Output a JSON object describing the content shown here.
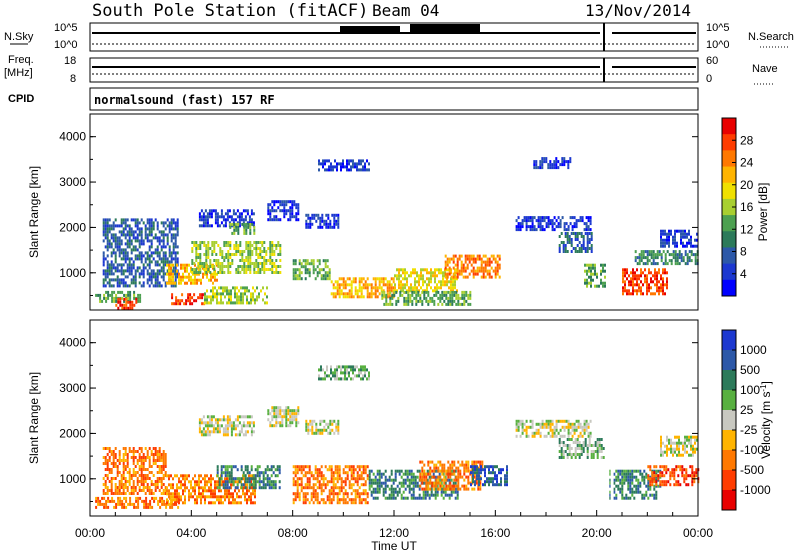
{
  "header": {
    "station": "South Pole Station (fitACF)",
    "beam": "Beam 04",
    "date": "13/Nov/2014"
  },
  "top_panels": {
    "nsky_label": "N.Sky",
    "nsky_ticks": [
      "10^5",
      "10^0"
    ],
    "nsearch_label": "N.Search",
    "nsearch_ticks": [
      "10^5",
      "10^0"
    ],
    "freq_label": "Freq.",
    "freq_unit": "[MHz]",
    "freq_ticks": [
      "18",
      "8"
    ],
    "nave_label": "Nave",
    "nave_ticks": [
      "60",
      "0"
    ],
    "cpid_label": "CPID",
    "cpid_text": "normalsound (fast) 157 RF"
  },
  "chart_data": [
    {
      "type": "heatmap",
      "name": "power",
      "ylabel": "Slant Range [km]",
      "yticks": [
        "4000",
        "3000",
        "2000",
        "1000"
      ],
      "ytick_values": [
        4000,
        3000,
        2000,
        1000
      ],
      "ylim": [
        180,
        4500
      ],
      "xlim_hours": [
        0,
        24
      ],
      "colorbar_label": "Power [dB]",
      "colorbar_ticks": [
        "28",
        "24",
        "20",
        "16",
        "12",
        "8",
        "4"
      ],
      "colorbar_colors": [
        "#e80000",
        "#ff3c00",
        "#ff7800",
        "#ffb400",
        "#f0e000",
        "#a8cf30",
        "#4ca050",
        "#2c7a5a",
        "#2c58a8",
        "#1c38d0",
        "#0000ff"
      ],
      "regions": [
        {
          "t0": 0.2,
          "t1": 2.0,
          "r0": 350,
          "r1": 600,
          "level": 6
        },
        {
          "t0": 1.0,
          "t1": 1.8,
          "r0": 250,
          "r1": 450,
          "level": 1
        },
        {
          "t0": 3.2,
          "t1": 4.6,
          "r0": 300,
          "r1": 550,
          "level": 1
        },
        {
          "t0": 4.5,
          "t1": 7.0,
          "r0": 350,
          "r1": 700,
          "level": 5
        },
        {
          "t0": 0.5,
          "t1": 3.5,
          "r0": 700,
          "r1": 2200,
          "level": 8
        },
        {
          "t0": 3.0,
          "t1": 5.0,
          "r0": 800,
          "r1": 1200,
          "level": 3
        },
        {
          "t0": 4.0,
          "t1": 7.5,
          "r0": 1000,
          "r1": 1700,
          "level": 5
        },
        {
          "t0": 4.3,
          "t1": 6.5,
          "r0": 2050,
          "r1": 2400,
          "level": 9
        },
        {
          "t0": 5.5,
          "t1": 6.5,
          "r0": 1900,
          "r1": 2100,
          "level": 6
        },
        {
          "t0": 7.0,
          "t1": 8.2,
          "r0": 2200,
          "r1": 2600,
          "level": 9
        },
        {
          "t0": 8.5,
          "t1": 9.8,
          "r0": 2000,
          "r1": 2300,
          "level": 9
        },
        {
          "t0": 8.0,
          "t1": 9.5,
          "r0": 900,
          "r1": 1300,
          "level": 6
        },
        {
          "t0": 9.5,
          "t1": 12.0,
          "r0": 500,
          "r1": 900,
          "level": 3
        },
        {
          "t0": 12.0,
          "t1": 14.5,
          "r0": 600,
          "r1": 1100,
          "level": 4
        },
        {
          "t0": 14.0,
          "t1": 16.2,
          "r0": 900,
          "r1": 1400,
          "level": 2
        },
        {
          "t0": 11.5,
          "t1": 15.0,
          "r0": 300,
          "r1": 600,
          "level": 6
        },
        {
          "t0": 16.8,
          "t1": 19.8,
          "r0": 1950,
          "r1": 2250,
          "level": 9
        },
        {
          "t0": 18.5,
          "t1": 19.8,
          "r0": 1500,
          "r1": 1900,
          "level": 8
        },
        {
          "t0": 19.5,
          "t1": 20.3,
          "r0": 700,
          "r1": 1200,
          "level": 6
        },
        {
          "t0": 21.0,
          "t1": 22.8,
          "r0": 550,
          "r1": 1100,
          "level": 1
        },
        {
          "t0": 22.5,
          "t1": 24.0,
          "r0": 1600,
          "r1": 1950,
          "level": 9
        },
        {
          "t0": 21.5,
          "t1": 24.0,
          "r0": 1200,
          "r1": 1500,
          "level": 7
        },
        {
          "t0": 9.0,
          "t1": 11.0,
          "r0": 3300,
          "r1": 3500,
          "level": 9
        },
        {
          "t0": 17.5,
          "t1": 19.0,
          "r0": 3350,
          "r1": 3550,
          "level": 9
        }
      ]
    },
    {
      "type": "heatmap",
      "name": "velocity",
      "ylabel": "Slant Range [km]",
      "yticks": [
        "4000",
        "3000",
        "2000",
        "1000"
      ],
      "ytick_values": [
        4000,
        3000,
        2000,
        1000
      ],
      "ylim": [
        180,
        4500
      ],
      "xlim_hours": [
        0,
        24
      ],
      "xlabel": "Time UT",
      "xticks": [
        "00:00",
        "04:00",
        "08:00",
        "12:00",
        "16:00",
        "20:00",
        "00:00"
      ],
      "xtick_values": [
        0,
        4,
        8,
        12,
        16,
        20,
        24
      ],
      "colorbar_ticks": [
        "1000",
        "500",
        "100",
        "25",
        "-25",
        "-100",
        "-500",
        "-1000"
      ],
      "colorbar_colors": [
        "#1c38d0",
        "#2c58a8",
        "#2c7a5a",
        "#58b040",
        "#c8c8c0",
        "#ffb400",
        "#ff7800",
        "#ff3c00",
        "#e80000"
      ],
      "regions": [
        {
          "t0": 0.2,
          "t1": 3.5,
          "r0": 350,
          "r1": 600,
          "level": 6
        },
        {
          "t0": 0.5,
          "t1": 3.0,
          "r0": 700,
          "r1": 1700,
          "level": 6
        },
        {
          "t0": 3.0,
          "t1": 6.5,
          "r0": 500,
          "r1": 1100,
          "level": 6
        },
        {
          "t0": 5.0,
          "t1": 7.5,
          "r0": 800,
          "r1": 1300,
          "level": 2
        },
        {
          "t0": 4.3,
          "t1": 6.5,
          "r0": 2000,
          "r1": 2400,
          "level": 4
        },
        {
          "t0": 7.0,
          "t1": 8.2,
          "r0": 2150,
          "r1": 2600,
          "level": 4
        },
        {
          "t0": 8.5,
          "t1": 9.8,
          "r0": 2000,
          "r1": 2300,
          "level": 4
        },
        {
          "t0": 8.0,
          "t1": 11.0,
          "r0": 500,
          "r1": 1300,
          "level": 6
        },
        {
          "t0": 11.0,
          "t1": 14.5,
          "r0": 550,
          "r1": 1200,
          "level": 2
        },
        {
          "t0": 13.0,
          "t1": 15.5,
          "r0": 800,
          "r1": 1400,
          "level": 6
        },
        {
          "t0": 15.0,
          "t1": 16.5,
          "r0": 900,
          "r1": 1300,
          "level": 1
        },
        {
          "t0": 16.8,
          "t1": 19.8,
          "r0": 1950,
          "r1": 2300,
          "level": 4
        },
        {
          "t0": 18.5,
          "t1": 20.3,
          "r0": 1500,
          "r1": 1900,
          "level": 3
        },
        {
          "t0": 20.5,
          "t1": 22.5,
          "r0": 600,
          "r1": 1200,
          "level": 2
        },
        {
          "t0": 22.5,
          "t1": 24.0,
          "r0": 1550,
          "r1": 1950,
          "level": 4
        },
        {
          "t0": 22.0,
          "t1": 24.0,
          "r0": 900,
          "r1": 1300,
          "level": 7
        },
        {
          "t0": 9.0,
          "t1": 11.0,
          "r0": 3200,
          "r1": 3500,
          "level": 3
        }
      ]
    }
  ]
}
